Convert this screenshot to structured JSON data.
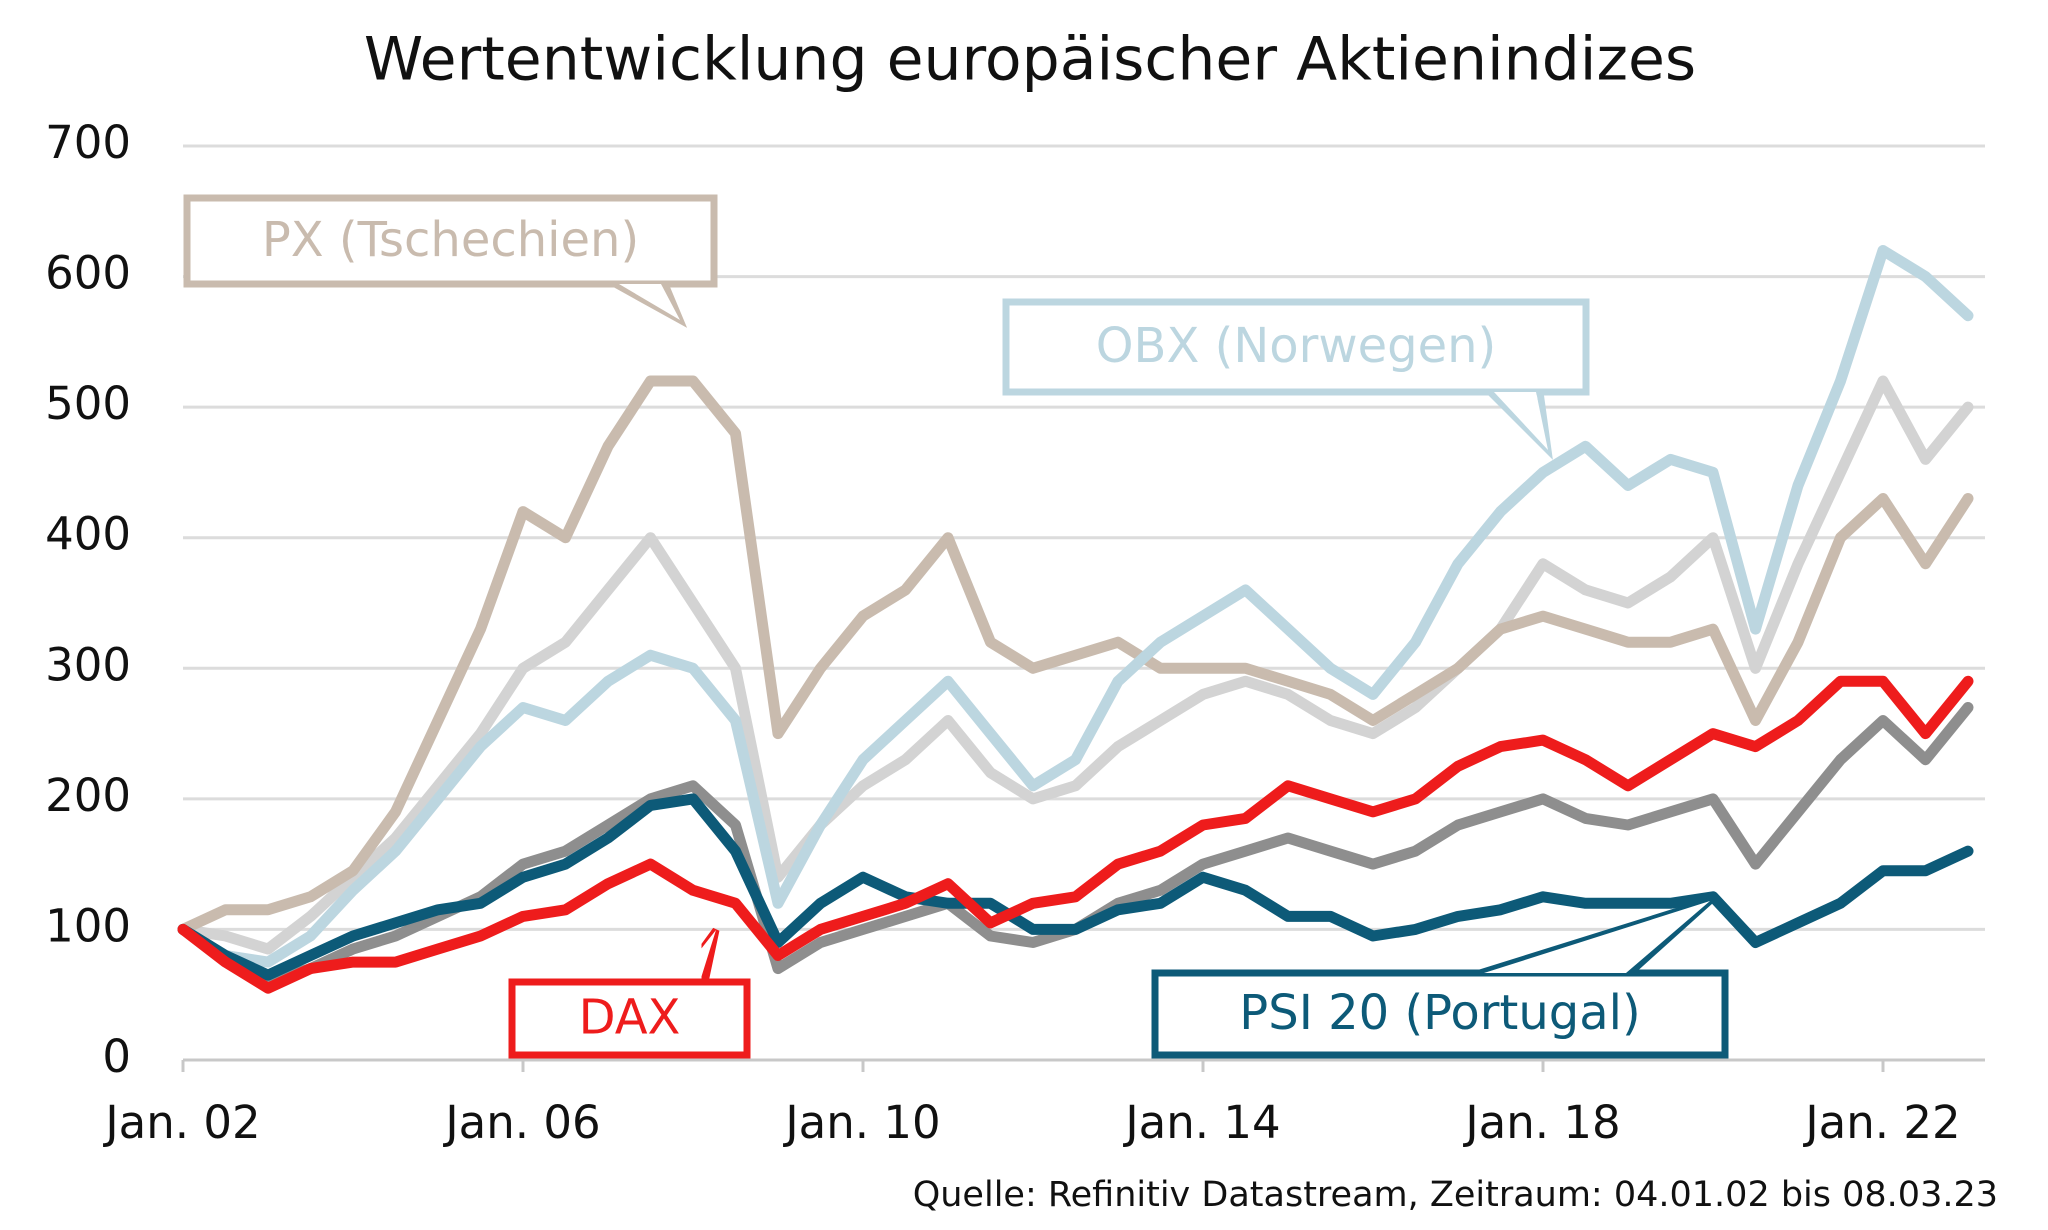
{
  "chart_data": {
    "type": "line",
    "title": "Wertentwicklung europäischer Aktienindizes",
    "source": "Quelle: Refinitiv Datastream, Zeitraum: 04.01.02 bis 08.03.23",
    "x": [
      2002,
      2002.5,
      2003,
      2003.5,
      2004,
      2004.5,
      2005,
      2005.5,
      2006,
      2006.5,
      2007,
      2007.5,
      2008,
      2008.5,
      2009,
      2009.5,
      2010,
      2010.5,
      2011,
      2011.5,
      2012,
      2012.5,
      2013,
      2013.5,
      2014,
      2014.5,
      2015,
      2015.5,
      2016,
      2016.5,
      2017,
      2017.5,
      2018,
      2018.5,
      2019,
      2019.5,
      2020,
      2020.5,
      2021,
      2021.5,
      2022,
      2022.5,
      2023
    ],
    "xlim": [
      2002,
      2023.2
    ],
    "xticks": [
      {
        "value": 2002,
        "label": "Jan. 02"
      },
      {
        "value": 2006,
        "label": "Jan. 06"
      },
      {
        "value": 2010,
        "label": "Jan. 10"
      },
      {
        "value": 2014,
        "label": "Jan. 14"
      },
      {
        "value": 2018,
        "label": "Jan. 18"
      },
      {
        "value": 2022,
        "label": "Jan. 22"
      }
    ],
    "ylim": [
      0,
      700
    ],
    "yticks": [
      0,
      100,
      200,
      300,
      400,
      500,
      600,
      700
    ],
    "grid": true,
    "series": [
      {
        "color": "#d3d3d3",
        "values": [
          100,
          95,
          85,
          110,
          140,
          170,
          210,
          250,
          300,
          320,
          360,
          400,
          350,
          300,
          140,
          180,
          210,
          230,
          260,
          220,
          200,
          210,
          240,
          260,
          280,
          290,
          280,
          260,
          250,
          270,
          300,
          330,
          380,
          360,
          350,
          370,
          400,
          300,
          380,
          450,
          520,
          460,
          500
        ]
      },
      {
        "color": "#8e8e8e",
        "values": [
          100,
          80,
          60,
          70,
          85,
          95,
          110,
          125,
          150,
          160,
          180,
          200,
          210,
          180,
          70,
          90,
          100,
          110,
          120,
          95,
          90,
          100,
          120,
          130,
          150,
          160,
          170,
          160,
          150,
          160,
          180,
          190,
          200,
          185,
          180,
          190,
          200,
          150,
          190,
          230,
          260,
          230,
          270
        ]
      },
      {
        "name": "PX (Tschechien)",
        "color": "#c9bbae",
        "values": [
          100,
          115,
          115,
          125,
          145,
          190,
          260,
          330,
          420,
          400,
          470,
          520,
          520,
          480,
          250,
          300,
          340,
          360,
          400,
          320,
          300,
          310,
          320,
          300,
          300,
          300,
          290,
          280,
          260,
          280,
          300,
          330,
          340,
          330,
          320,
          320,
          330,
          260,
          320,
          400,
          430,
          380,
          430
        ]
      },
      {
        "name": "OBX (Norwegen)",
        "color": "#bcd6e0",
        "values": [
          100,
          80,
          75,
          95,
          130,
          160,
          200,
          240,
          270,
          260,
          290,
          310,
          300,
          260,
          120,
          180,
          230,
          260,
          290,
          250,
          210,
          230,
          290,
          320,
          340,
          360,
          330,
          300,
          280,
          320,
          380,
          420,
          450,
          470,
          440,
          460,
          450,
          330,
          440,
          520,
          620,
          600,
          570
        ]
      },
      {
        "name": "PSI 20 (Portugal)",
        "color": "#0d5a78",
        "values": [
          100,
          80,
          65,
          80,
          95,
          105,
          115,
          120,
          140,
          150,
          170,
          195,
          200,
          160,
          90,
          120,
          140,
          125,
          120,
          120,
          100,
          100,
          115,
          120,
          140,
          130,
          110,
          110,
          95,
          100,
          110,
          115,
          125,
          120,
          120,
          120,
          125,
          90,
          105,
          120,
          145,
          145,
          160
        ]
      },
      {
        "name": "DAX",
        "color": "#ee1c1c",
        "values": [
          100,
          75,
          55,
          70,
          75,
          75,
          85,
          95,
          110,
          115,
          135,
          150,
          130,
          120,
          80,
          100,
          110,
          120,
          135,
          105,
          120,
          125,
          150,
          160,
          180,
          185,
          210,
          200,
          190,
          200,
          225,
          240,
          245,
          230,
          210,
          230,
          250,
          240,
          260,
          290,
          290,
          250,
          290
        ]
      }
    ]
  }
}
